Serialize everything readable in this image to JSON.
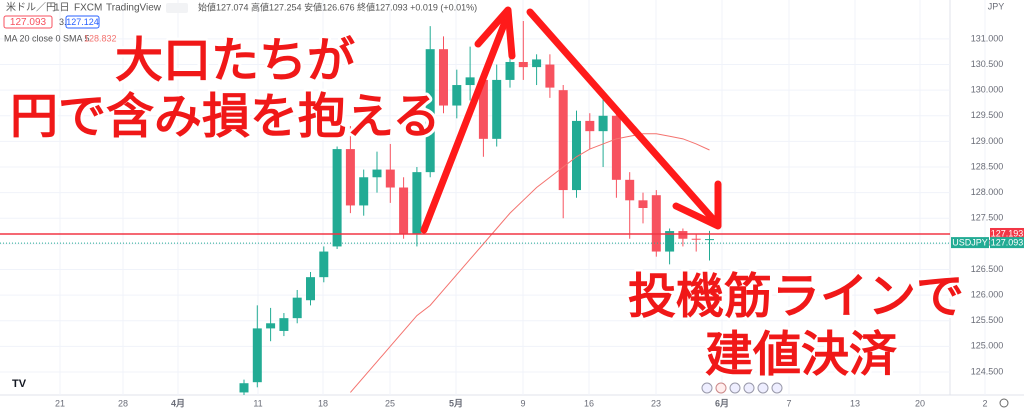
{
  "chart_data": {
    "type": "candlestick",
    "header": {
      "symbol": "米ドル／円",
      "interval": "1日",
      "source": "FXCM",
      "provider": "TradingView",
      "sell": "127.093",
      "spread": "3.1",
      "buy": "127.124",
      "ohlc_line": "始値127.074 高値127.254 安値126.676 終値127.093 +0.019 (+0.01%)",
      "indicator": "MA 20 close 0 SMA 5",
      "indicator_value": "128.832",
      "currency": "JPY",
      "ticker": "USDJPY"
    },
    "annotations": [
      "大口たちが",
      "円で含み損を抱える",
      "投機筋ラインで",
      "建値決済"
    ],
    "categories": [
      "21",
      "28",
      "4月",
      "11",
      "18",
      "25",
      "5月",
      "9",
      "16",
      "23",
      "6月",
      "7",
      "13",
      "20",
      "2"
    ],
    "open": [
      124.1,
      124.3,
      125.35,
      125.3,
      125.55,
      125.9,
      126.35,
      126.95,
      128.85,
      127.75,
      128.3,
      128.45,
      128.1,
      127.2,
      128.4,
      130.8,
      129.7,
      130.1,
      130.2,
      129.05,
      130.2,
      130.55,
      130.45,
      130.5,
      130.0,
      128.05,
      129.4,
      129.2,
      129.5,
      128.25,
      127.85,
      127.95,
      126.85,
      127.25,
      127.1,
      127.074
    ],
    "high": [
      124.35,
      125.8,
      125.75,
      125.65,
      126.1,
      126.45,
      126.95,
      128.9,
      129.3,
      128.45,
      128.8,
      128.95,
      128.3,
      128.5,
      131.25,
      131.05,
      130.4,
      130.85,
      130.35,
      130.5,
      131.3,
      131.35,
      130.7,
      130.7,
      130.1,
      129.6,
      129.55,
      129.9,
      129.6,
      128.4,
      128.0,
      128.05,
      127.3,
      127.3,
      127.2,
      127.254
    ],
    "low": [
      124.05,
      124.2,
      125.1,
      125.2,
      125.45,
      125.8,
      126.25,
      126.9,
      127.6,
      127.55,
      128.0,
      127.8,
      127.1,
      126.95,
      128.3,
      129.55,
      129.45,
      129.8,
      128.7,
      128.9,
      130.05,
      130.2,
      130.1,
      129.85,
      127.5,
      127.9,
      128.85,
      128.5,
      127.9,
      127.1,
      127.4,
      126.75,
      126.6,
      126.95,
      126.85,
      126.676
    ],
    "close": [
      124.28,
      125.35,
      125.45,
      125.55,
      125.95,
      126.35,
      126.85,
      128.85,
      127.75,
      128.3,
      128.45,
      128.1,
      127.2,
      128.4,
      130.8,
      129.7,
      130.1,
      130.25,
      129.05,
      130.2,
      130.55,
      130.45,
      130.6,
      130.05,
      128.05,
      129.4,
      129.2,
      129.5,
      128.25,
      127.85,
      127.7,
      126.85,
      127.25,
      127.1,
      127.09,
      127.093
    ],
    "ma": [
      null,
      null,
      null,
      null,
      null,
      null,
      null,
      null,
      124.1,
      124.4,
      124.7,
      125.0,
      125.3,
      125.6,
      125.8,
      126.1,
      126.4,
      126.7,
      127.0,
      127.3,
      127.6,
      127.85,
      128.1,
      128.3,
      128.5,
      128.7,
      128.85,
      128.95,
      129.05,
      129.1,
      129.15,
      129.15,
      129.1,
      129.05,
      128.95,
      128.832
    ],
    "up_color": "#22ab94",
    "down_color": "#f7525f",
    "ma_color": "#f4736f",
    "price_line": 127.193,
    "last_price": 127.093,
    "ylim": [
      124.05,
      131.76
    ],
    "yticks": [
      {
        "value": 124.5,
        "label": "124.500"
      },
      {
        "value": 125,
        "label": "125.000"
      },
      {
        "value": 125.5,
        "label": "125.500"
      },
      {
        "value": 126,
        "label": "126.000"
      },
      {
        "value": 126.5,
        "label": "126.500"
      },
      {
        "value": 127,
        "label": "127.000"
      },
      {
        "value": 127.5,
        "label": "127.500"
      },
      {
        "value": 128,
        "label": "128.000"
      },
      {
        "value": 128.5,
        "label": "128.500"
      },
      {
        "value": 129,
        "label": "129.000"
      },
      {
        "value": 129.5,
        "label": "129.500"
      },
      {
        "value": 130,
        "label": "130.000"
      },
      {
        "value": 130.5,
        "label": "130.500"
      },
      {
        "value": 131,
        "label": "131.000"
      }
    ]
  }
}
